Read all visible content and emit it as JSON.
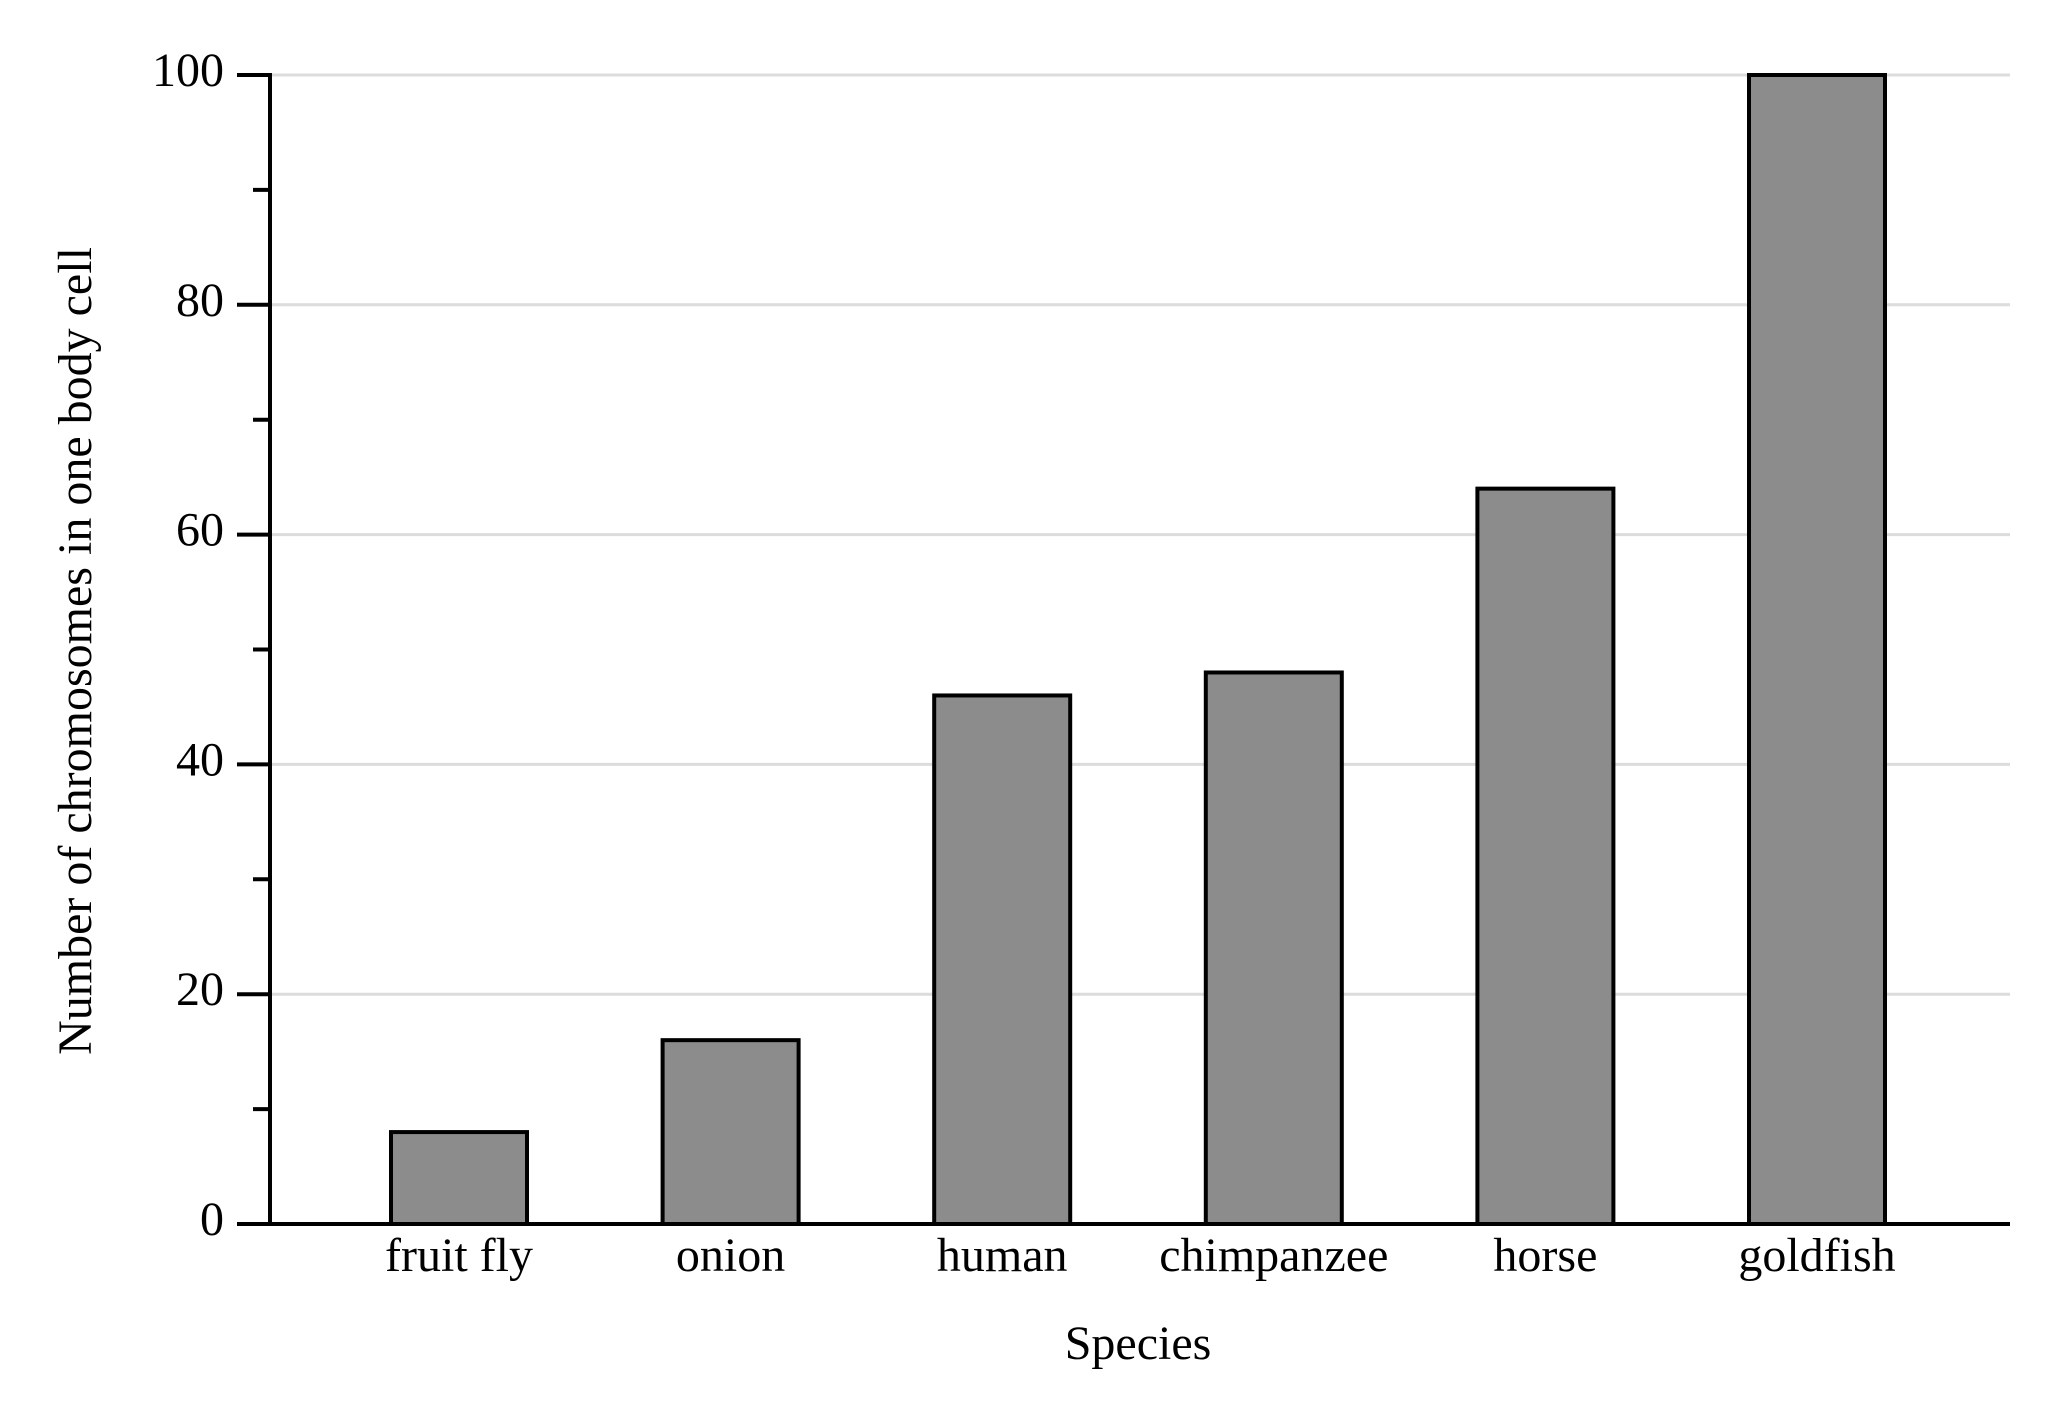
{
  "chart_data": {
    "type": "bar",
    "x_label": "Species",
    "y_label": "Number of chromosomes in one body cell",
    "categories": [
      "fruit fly",
      "onion",
      "human",
      "chimpanzee",
      "horse",
      "goldfish"
    ],
    "values": [
      8,
      16,
      46,
      48,
      64,
      100
    ],
    "color": "#8c8c8c",
    "ylim": [
      0,
      100
    ],
    "yticks": [
      0,
      20,
      40,
      60,
      80,
      100
    ],
    "minor_yticks": [
      10,
      30,
      50,
      70,
      90
    ],
    "grid": true
  }
}
